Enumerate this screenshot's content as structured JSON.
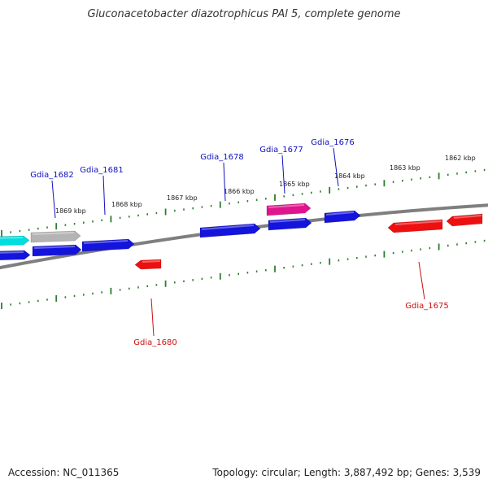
{
  "title": "Gluconacetobacter diazotrophicus PAl 5, complete genome",
  "accession": "Accession: NC_011365",
  "stats": "Topology: circular; Length: 3,887,492 bp; Genes: 3,539",
  "colors": {
    "backbone": "#7f7f7f",
    "tick": "#2e7d2e",
    "forward_label": "#1010c0",
    "reverse_label": "#cc1010"
  },
  "scale_labels": [
    "1869 kbp",
    "1868 kbp",
    "1867 kbp",
    "1866 kbp",
    "1865 kbp",
    "1864 kbp",
    "1863 kbp",
    "1862 kbp"
  ],
  "genes": [
    {
      "id": "g-cyan",
      "strand": "+",
      "color": "#00dede",
      "label": ""
    },
    {
      "id": "g-grey",
      "strand": "+",
      "color": "#b4b4b4",
      "label": ""
    },
    {
      "id": "g-1682",
      "strand": "+",
      "color": "#1414dc",
      "label": "Gdia_1682"
    },
    {
      "id": "g-1681",
      "strand": "+",
      "color": "#1414dc",
      "label": "Gdia_1681"
    },
    {
      "id": "g-1680",
      "strand": "-",
      "color": "#ee1010",
      "label": "Gdia_1680"
    },
    {
      "id": "g-1678",
      "strand": "+",
      "color": "#1414dc",
      "label": "Gdia_1678"
    },
    {
      "id": "g-pink",
      "strand": "+",
      "color": "#e0148c",
      "label": ""
    },
    {
      "id": "g-1677",
      "strand": "+",
      "color": "#1414dc",
      "label": "Gdia_1677"
    },
    {
      "id": "g-1676",
      "strand": "+",
      "color": "#1414dc",
      "label": "Gdia_1676"
    },
    {
      "id": "g-1675",
      "strand": "-",
      "color": "#ee1010",
      "label": "Gdia_1675"
    },
    {
      "id": "g-1674",
      "strand": "-",
      "color": "#ee1010",
      "label": ""
    },
    {
      "id": "g-left",
      "strand": "+",
      "color": "#1414dc",
      "label": ""
    }
  ]
}
